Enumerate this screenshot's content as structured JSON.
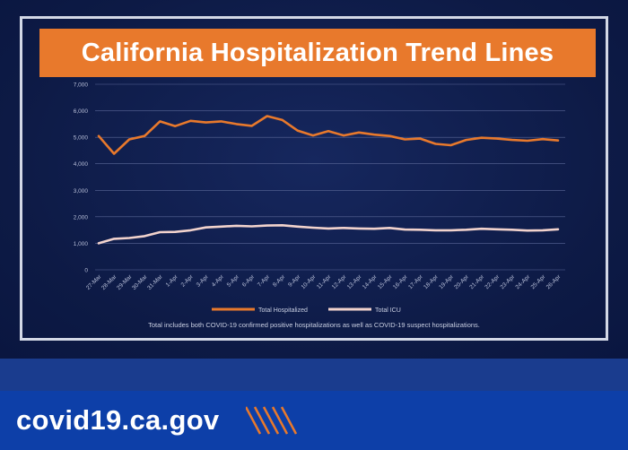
{
  "title": "California Hospitalization Trend Lines",
  "footer": {
    "url": "covid19.ca.gov"
  },
  "colors": {
    "hospitalized": "#e8792c",
    "icu": "#f2d3cd",
    "banner": "#e8792c",
    "background": "#0f1d4a"
  },
  "chart_data": {
    "type": "line",
    "title": "",
    "xlabel": "",
    "ylabel": "",
    "ylim": [
      0,
      7000
    ],
    "yticks": [
      "0",
      "1,000",
      "2,000",
      "3,000",
      "4,000",
      "5,000",
      "6,000",
      "7,000"
    ],
    "grid": true,
    "legend_position": "bottom",
    "categories": [
      "27-Mar",
      "28-Mar",
      "29-Mar",
      "30-Mar",
      "31-Mar",
      "1-Apr",
      "2-Apr",
      "3-Apr",
      "4-Apr",
      "5-Apr",
      "6-Apr",
      "7-Apr",
      "8-Apr",
      "9-Apr",
      "10-Apr",
      "11-Apr",
      "12-Apr",
      "13-Apr",
      "14-Apr",
      "15-Apr",
      "16-Apr",
      "17-Apr",
      "18-Apr",
      "19-Apr",
      "20-Apr",
      "21-Apr",
      "22-Apr",
      "23-Apr",
      "24-Apr",
      "25-Apr",
      "26-Apr"
    ],
    "series": [
      {
        "name": "Total Hospitalized",
        "values": [
          5050,
          4380,
          4920,
          5050,
          5600,
          5420,
          5620,
          5560,
          5600,
          5500,
          5430,
          5800,
          5650,
          5250,
          5070,
          5230,
          5070,
          5180,
          5100,
          5050,
          4920,
          4950,
          4750,
          4700,
          4900,
          4980,
          4950,
          4900,
          4870,
          4930,
          4880
        ]
      },
      {
        "name": "Total ICU",
        "values": [
          1000,
          1170,
          1200,
          1270,
          1420,
          1430,
          1490,
          1600,
          1630,
          1660,
          1640,
          1670,
          1680,
          1630,
          1590,
          1560,
          1580,
          1560,
          1550,
          1580,
          1520,
          1510,
          1490,
          1490,
          1510,
          1550,
          1530,
          1510,
          1480,
          1490,
          1530
        ]
      }
    ],
    "annotation": "Total includes both COVID-19 confirmed positive hospitalizations as well as COVID-19 suspect hospitalizations."
  }
}
